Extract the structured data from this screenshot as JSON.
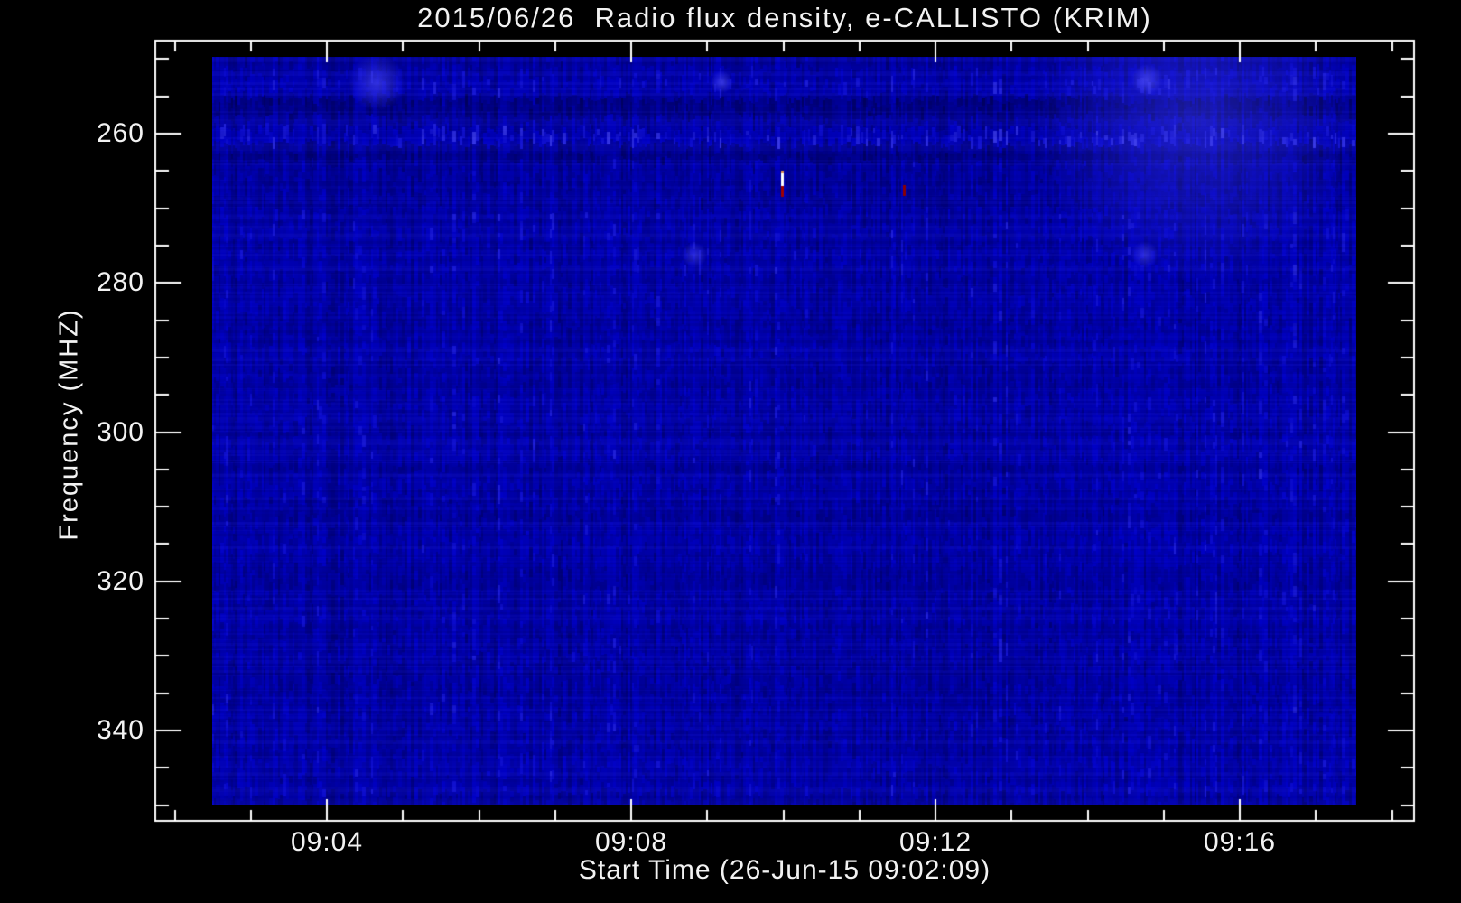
{
  "window": {
    "background": "#000000",
    "frame_color": "#FFFFFF",
    "text_color": "#F2F2F2"
  },
  "chart_data": {
    "type": "heatmap",
    "title": "2015/06/26  Radio flux density, e-CALLISTO (KRIM)",
    "xlabel": "Start Time (26-Jun-15 09:02:09)",
    "ylabel": "Frequency (MHZ)",
    "instrument": "e-CALLISTO (KRIM)",
    "date": "2015/06/26",
    "start_time": "09:02:09",
    "x_axis": {
      "unit": "minutes since 09:02",
      "major_ticks": [
        {
          "t": 2,
          "label": "09:04"
        },
        {
          "t": 6,
          "label": "09:08"
        },
        {
          "t": 10,
          "label": "09:12"
        },
        {
          "t": 14,
          "label": "09:16"
        }
      ],
      "minor_tick_every_min": 1,
      "minor_tick_range": [
        0,
        16
      ],
      "data_start_t": 0.49,
      "data_end_t": 15.53
    },
    "y_axis": {
      "unit": "MHz",
      "inverted": true,
      "major_ticks": [
        {
          "f": 260,
          "label": "260"
        },
        {
          "f": 280,
          "label": "280"
        },
        {
          "f": 300,
          "label": "300"
        },
        {
          "f": 320,
          "label": "320"
        },
        {
          "f": 340,
          "label": "340"
        }
      ],
      "minor_tick_every_mhz": 5,
      "minor_tick_range": [
        250,
        350
      ],
      "data_range_mhz": [
        249.7,
        350.0
      ]
    },
    "spectrogram": {
      "base_color": "#0000A8",
      "dark_stripe_color": "#000080",
      "bright_stripe_color": "#2A2AD8",
      "texture": {
        "stripe_w_min": 2,
        "stripe_w_max": 4,
        "seg_h_min": 5,
        "seg_h_max": 14,
        "contrast": 0.17,
        "row_noise": 0.1,
        "seed": 1234
      },
      "bands": [
        {
          "f0": 249.7,
          "f1": 251.2,
          "dv": -0.05
        },
        {
          "f0": 252.2,
          "f1": 254.3,
          "dv": 0.06
        },
        {
          "f0": 255.5,
          "f1": 257.7,
          "dv": -0.2
        },
        {
          "f0": 257.7,
          "f1": 259.3,
          "dv": -0.08
        },
        {
          "f0": 259.4,
          "f1": 261.2,
          "dv": 0.15
        },
        {
          "f0": 261.3,
          "f1": 263.6,
          "dv": -0.15
        },
        {
          "f0": 263.6,
          "f1": 270.0,
          "dv": -0.05
        },
        {
          "f0": 330.5,
          "f1": 334.0,
          "dv": -0.06
        },
        {
          "f0": 348.5,
          "f1": 350.0,
          "dv": -0.1
        }
      ],
      "bright_spots": [
        {
          "t0": 2.33,
          "t1": 2.98,
          "f0": 252.25,
          "f1": 254.06,
          "dv": 0.25
        },
        {
          "t0": 7.09,
          "t1": 7.29,
          "f0": 252.25,
          "f1": 253.94,
          "dv": 0.28
        },
        {
          "t0": 12.62,
          "t1": 12.94,
          "f0": 251.89,
          "f1": 253.7,
          "dv": 0.28
        },
        {
          "t0": 6.71,
          "t1": 6.95,
          "f0": 275.37,
          "f1": 277.19,
          "dv": 0.22
        },
        {
          "t0": 12.62,
          "t1": 12.88,
          "f0": 275.25,
          "f1": 277.19,
          "dv": 0.22
        },
        {
          "t0": 11.3,
          "t1": 15.53,
          "f0": 257.4,
          "f1": 258.9,
          "dv": 0.15
        }
      ],
      "rfi_spikes": [
        {
          "t": 7.98,
          "segments": [
            {
              "f0": 264.96,
              "f1": 265.33,
              "color": "#E09050"
            },
            {
              "f0": 265.33,
              "f1": 267.02,
              "color": "#FFFFFF"
            },
            {
              "f0": 267.02,
              "f1": 268.47,
              "color": "#A00000"
            }
          ]
        },
        {
          "t": 9.58,
          "segments": [
            {
              "f0": 266.9,
              "f1": 268.35,
              "color": "#8B0000"
            }
          ]
        }
      ]
    }
  }
}
